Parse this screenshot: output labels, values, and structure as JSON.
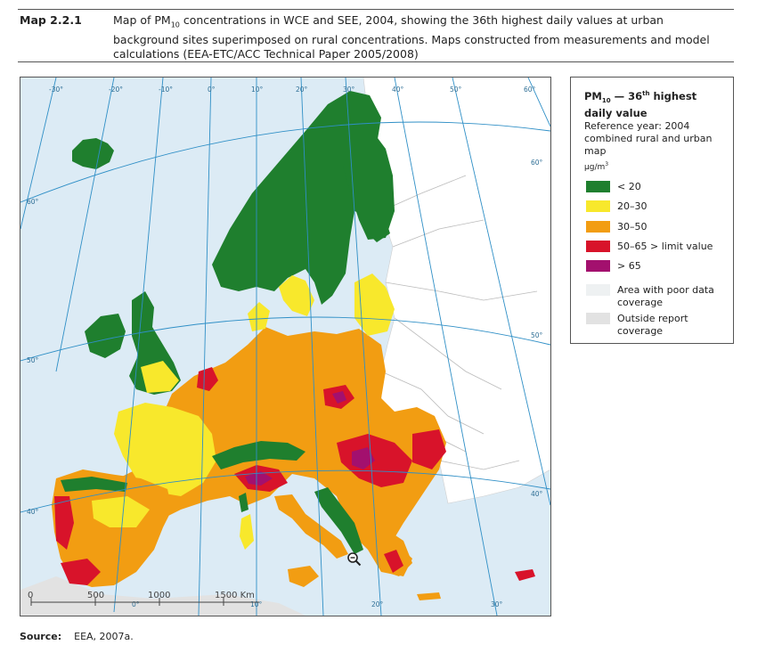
{
  "figure": {
    "label": "Map 2.2.1",
    "caption_part1": "Map of PM",
    "caption_sub": "10",
    "caption_part2": " concentrations in WCE and SEE, 2004, showing the 36th highest daily values at urban background sites superimposed on rural concentrations. Maps constructed from measurements and model calculations (EEA-ETC/ACC Technical Paper 2005/2008)"
  },
  "map": {
    "longitude_labels": [
      "-30°",
      "-20°",
      "-10°",
      "0°",
      "10°",
      "20°",
      "30°",
      "40°",
      "50°",
      "60°"
    ],
    "latitude_labels": [
      "60°",
      "60°",
      "50°",
      "50°",
      "40°",
      "40°"
    ],
    "bottom_labels": [
      "0°",
      "10°",
      "20°",
      "30°"
    ],
    "scale_labels": [
      "0",
      "500",
      "1000",
      "1500 Km"
    ],
    "colors": {
      "sea": "#dcebf5",
      "outside": "#e2e2e2",
      "green": "#1f7f2e",
      "yellow": "#f8e82c",
      "orange": "#f29d12",
      "red": "#d8132a",
      "purple": "#a3106e",
      "graticule": "#2f8fc6"
    }
  },
  "legend": {
    "title_pm": "PM",
    "title_sub": "10",
    "title_rest1": " — 36",
    "title_sup": "th",
    "title_rest2": " highest daily value",
    "reference": "Reference year: 2004 combined rural and urban map",
    "unit": "µg/m",
    "unit_sup": "3",
    "items": [
      {
        "label": "< 20",
        "color": "#1f7f2e"
      },
      {
        "label": "20–30",
        "color": "#f8e82c"
      },
      {
        "label": "30–50",
        "color": "#f29d12"
      },
      {
        "label": "50–65 > limit value",
        "color": "#d8132a"
      },
      {
        "label": "> 65",
        "color": "#a3106e"
      },
      {
        "label": "Area with poor data coverage",
        "color": "#eef1f2"
      },
      {
        "label": "Outside report coverage",
        "color": "#e2e2e2"
      }
    ]
  },
  "source": {
    "label": "Source:",
    "text": "EEA, 2007a."
  }
}
